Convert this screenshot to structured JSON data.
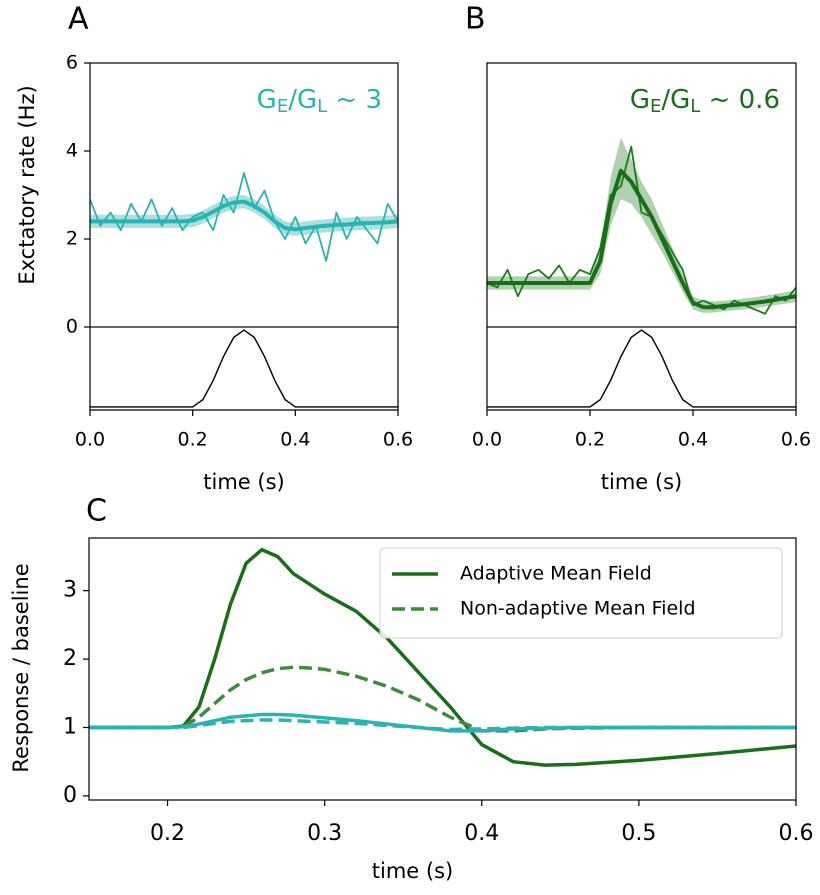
{
  "chart_data": [
    {
      "type": "line",
      "panel_label": "A",
      "annotation": [
        "G",
        "E",
        "/G",
        "L",
        " ~ 3"
      ],
      "ylabel": "Exctatory rate (Hz)",
      "xlabel": "time (s)",
      "xlim": [
        0,
        0.6
      ],
      "ylim": [
        0,
        6
      ],
      "xticks": [
        {
          "value": 0,
          "label": "0.0"
        },
        0.2,
        0.4,
        0.6
      ],
      "yticks": [
        0,
        2,
        4,
        6
      ],
      "x": [
        0,
        0.02,
        0.04,
        0.06,
        0.08,
        0.1,
        0.12,
        0.14,
        0.16,
        0.18,
        0.2,
        0.22,
        0.24,
        0.26,
        0.28,
        0.3,
        0.32,
        0.34,
        0.36,
        0.38,
        0.4,
        0.42,
        0.44,
        0.46,
        0.48,
        0.5,
        0.52,
        0.54,
        0.56,
        0.58,
        0.6
      ],
      "series": [
        {
          "color": "#2ab3b0",
          "values": [
            2.9,
            2.3,
            2.6,
            2.2,
            2.8,
            2.4,
            2.9,
            2.3,
            2.7,
            2.2,
            2.5,
            2.6,
            2.2,
            3.0,
            2.6,
            3.5,
            2.7,
            3.1,
            2.4,
            2.0,
            2.5,
            1.9,
            2.3,
            1.5,
            2.6,
            2.0,
            2.5,
            2.2,
            1.9,
            2.8,
            2.4
          ]
        }
      ],
      "mean": {
        "color": "#2ab3b0",
        "values": [
          2.4,
          2.4,
          2.4,
          2.4,
          2.4,
          2.4,
          2.4,
          2.4,
          2.4,
          2.4,
          2.42,
          2.5,
          2.62,
          2.75,
          2.83,
          2.85,
          2.75,
          2.6,
          2.4,
          2.25,
          2.22,
          2.25,
          2.28,
          2.3,
          2.32,
          2.33,
          2.35,
          2.36,
          2.37,
          2.38,
          2.4
        ]
      },
      "band": {
        "color": "#8fd6d4",
        "lower": [
          2.25,
          2.25,
          2.25,
          2.25,
          2.25,
          2.25,
          2.25,
          2.25,
          2.25,
          2.25,
          2.27,
          2.35,
          2.47,
          2.6,
          2.68,
          2.7,
          2.6,
          2.45,
          2.25,
          2.1,
          2.07,
          2.1,
          2.13,
          2.15,
          2.17,
          2.18,
          2.2,
          2.21,
          2.22,
          2.23,
          2.25
        ],
        "upper": [
          2.55,
          2.55,
          2.55,
          2.55,
          2.55,
          2.55,
          2.55,
          2.55,
          2.55,
          2.55,
          2.57,
          2.65,
          2.77,
          2.9,
          2.98,
          3.0,
          2.9,
          2.75,
          2.55,
          2.4,
          2.37,
          2.4,
          2.43,
          2.45,
          2.47,
          2.48,
          2.5,
          2.51,
          2.52,
          2.53,
          2.55
        ]
      },
      "stimulus": {
        "color": "#000000",
        "ylim": [
          -0.04,
          1.04
        ],
        "values": [
          0,
          0,
          0,
          0,
          0,
          0,
          0,
          0,
          0,
          0,
          0,
          0.095,
          0.345,
          0.655,
          0.905,
          1,
          0.905,
          0.655,
          0.345,
          0.095,
          0,
          0,
          0,
          0,
          0,
          0,
          0,
          0,
          0,
          0,
          0
        ]
      }
    },
    {
      "type": "line",
      "panel_label": "B",
      "annotation": [
        "G",
        "E",
        "/G",
        "L",
        " ~ 0.6"
      ],
      "xlabel": "time (s)",
      "xlim": [
        0,
        0.6
      ],
      "ylim": [
        0,
        6
      ],
      "xticks": [
        {
          "value": 0,
          "label": "0.0"
        },
        0.2,
        0.4,
        0.6
      ],
      "x": [
        0,
        0.02,
        0.04,
        0.06,
        0.08,
        0.1,
        0.12,
        0.14,
        0.16,
        0.18,
        0.2,
        0.22,
        0.24,
        0.26,
        0.28,
        0.3,
        0.32,
        0.34,
        0.36,
        0.38,
        0.4,
        0.42,
        0.44,
        0.46,
        0.48,
        0.5,
        0.52,
        0.54,
        0.56,
        0.58,
        0.6
      ],
      "series": [
        {
          "color": "#1a7a1a",
          "values": [
            1.0,
            0.9,
            1.3,
            0.7,
            1.2,
            1.3,
            1.1,
            1.4,
            1.0,
            1.3,
            1.2,
            1.8,
            3.0,
            3.2,
            4.1,
            2.6,
            2.5,
            2.1,
            1.7,
            1.3,
            0.5,
            0.6,
            0.5,
            0.4,
            0.6,
            0.5,
            0.4,
            0.3,
            0.7,
            0.6,
            0.9
          ]
        }
      ],
      "mean": {
        "color": "#1a6e1a",
        "values": [
          1.0,
          1.0,
          1.0,
          1.0,
          1.0,
          1.0,
          1.0,
          1.0,
          1.0,
          1.0,
          1.0,
          1.5,
          2.8,
          3.55,
          3.3,
          2.9,
          2.5,
          2.0,
          1.5,
          1.0,
          0.55,
          0.45,
          0.45,
          0.48,
          0.5,
          0.52,
          0.55,
          0.58,
          0.62,
          0.66,
          0.7
        ]
      },
      "band": {
        "color": "#94c294",
        "lower": [
          0.85,
          0.85,
          0.85,
          0.85,
          0.85,
          0.85,
          0.85,
          0.85,
          0.85,
          0.85,
          0.85,
          1.2,
          2.3,
          2.9,
          2.8,
          2.5,
          2.1,
          1.7,
          1.25,
          0.8,
          0.4,
          0.32,
          0.33,
          0.36,
          0.38,
          0.4,
          0.43,
          0.46,
          0.5,
          0.53,
          0.57
        ],
        "upper": [
          1.15,
          1.15,
          1.15,
          1.15,
          1.15,
          1.15,
          1.15,
          1.15,
          1.15,
          1.15,
          1.15,
          1.8,
          3.4,
          4.3,
          3.8,
          3.3,
          2.9,
          2.35,
          1.8,
          1.2,
          0.7,
          0.6,
          0.58,
          0.6,
          0.62,
          0.65,
          0.68,
          0.71,
          0.75,
          0.79,
          0.83
        ]
      },
      "stimulus": {
        "color": "#000000",
        "ylim": [
          -0.04,
          1.04
        ],
        "values": [
          0,
          0,
          0,
          0,
          0,
          0,
          0,
          0,
          0,
          0,
          0,
          0.095,
          0.345,
          0.655,
          0.905,
          1,
          0.905,
          0.655,
          0.345,
          0.095,
          0,
          0,
          0,
          0,
          0,
          0,
          0,
          0,
          0,
          0,
          0
        ]
      }
    },
    {
      "type": "line",
      "panel_label": "C",
      "ylabel": "Response / baseline",
      "xlabel": "time (s)",
      "xlim": [
        0.15,
        0.6
      ],
      "ylim": [
        -0.06,
        3.77
      ],
      "xticks": [
        0.2,
        0.3,
        0.4,
        0.5,
        0.6
      ],
      "yticks": [
        0,
        1,
        2,
        3
      ],
      "legend": "upper right",
      "x": [
        0.15,
        0.2,
        0.21,
        0.22,
        0.23,
        0.24,
        0.25,
        0.26,
        0.27,
        0.28,
        0.29,
        0.3,
        0.32,
        0.34,
        0.36,
        0.38,
        0.4,
        0.42,
        0.44,
        0.46,
        0.5,
        0.55,
        0.6
      ],
      "series": [
        {
          "name": "Adaptive Mean Field",
          "color": "#1a6e1a",
          "linestyle": "solid",
          "values": [
            1,
            1,
            1.02,
            1.3,
            2.0,
            2.8,
            3.4,
            3.6,
            3.5,
            3.25,
            3.1,
            2.95,
            2.7,
            2.3,
            1.8,
            1.3,
            0.75,
            0.5,
            0.45,
            0.46,
            0.52,
            0.62,
            0.73
          ]
        },
        {
          "name": "Non-adaptive Mean Field",
          "color": "#3d8c3d",
          "linestyle": "dashed",
          "values": [
            1,
            1,
            1.01,
            1.15,
            1.35,
            1.55,
            1.7,
            1.8,
            1.86,
            1.88,
            1.87,
            1.85,
            1.75,
            1.6,
            1.4,
            1.15,
            0.95,
            0.95,
            0.98,
            0.99,
            1,
            1,
            1
          ]
        },
        {
          "color": "#2ab3b0",
          "linestyle": "solid",
          "values": [
            1,
            1,
            1.01,
            1.05,
            1.1,
            1.15,
            1.17,
            1.19,
            1.19,
            1.18,
            1.16,
            1.14,
            1.1,
            1.05,
            1.0,
            0.95,
            0.95,
            0.98,
            0.99,
            1,
            1,
            1,
            1
          ]
        },
        {
          "color": "#2ab3b0",
          "linestyle": "dashed",
          "values": [
            1,
            1,
            1,
            1.03,
            1.06,
            1.09,
            1.1,
            1.11,
            1.11,
            1.1,
            1.09,
            1.08,
            1.06,
            1.03,
            1.0,
            0.97,
            0.98,
            0.99,
            1,
            1,
            1,
            1,
            1
          ]
        }
      ]
    }
  ]
}
